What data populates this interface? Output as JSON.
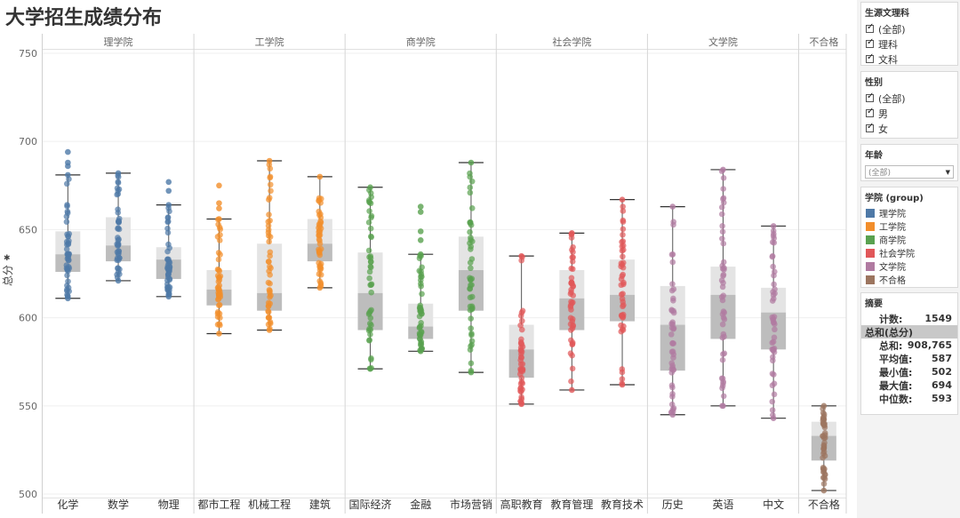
{
  "title": "大学招生成绩分布",
  "chart_data": {
    "type": "box-scatter",
    "ylabel": "总分",
    "ylim": [
      498,
      752
    ],
    "yticks": [
      500,
      550,
      600,
      650,
      700,
      750
    ],
    "grid": true,
    "colleges": [
      {
        "name": "理学院",
        "color": "#4e79a7",
        "majors": [
          {
            "name": "化学",
            "min": 611,
            "q1": 626,
            "median": 636,
            "q3": 649,
            "max": 681,
            "extra_points": [
              686,
              688,
              694
            ]
          },
          {
            "name": "数学",
            "min": 621,
            "q1": 632,
            "median": 641,
            "q3": 657,
            "max": 682,
            "extra_points": []
          },
          {
            "name": "物理",
            "min": 612,
            "q1": 622,
            "median": 633,
            "q3": 640,
            "max": 664,
            "extra_points": [
              672,
              677
            ]
          }
        ]
      },
      {
        "name": "工学院",
        "color": "#f28e2b",
        "majors": [
          {
            "name": "都市工程",
            "min": 591,
            "q1": 607,
            "median": 616,
            "q3": 627,
            "max": 656,
            "extra_points": [
              662,
              665,
              675
            ]
          },
          {
            "name": "机械工程",
            "min": 593,
            "q1": 604,
            "median": 614,
            "q3": 642,
            "max": 689,
            "extra_points": []
          },
          {
            "name": "建筑",
            "min": 617,
            "q1": 632,
            "median": 642,
            "q3": 656,
            "max": 680,
            "extra_points": []
          }
        ]
      },
      {
        "name": "商学院",
        "color": "#59a14f",
        "majors": [
          {
            "name": "国际经济",
            "min": 571,
            "q1": 593,
            "median": 614,
            "q3": 637,
            "max": 674,
            "extra_points": []
          },
          {
            "name": "金融",
            "min": 581,
            "q1": 588,
            "median": 595,
            "q3": 608,
            "max": 636,
            "extra_points": [
              644,
              649,
              660,
              663
            ]
          },
          {
            "name": "市场营销",
            "min": 569,
            "q1": 604,
            "median": 627,
            "q3": 646,
            "max": 688,
            "extra_points": []
          }
        ]
      },
      {
        "name": "社会学院",
        "color": "#e15759",
        "majors": [
          {
            "name": "高职教育",
            "min": 551,
            "q1": 566,
            "median": 582,
            "q3": 596,
            "max": 635,
            "extra_points": []
          },
          {
            "name": "教育管理",
            "min": 559,
            "q1": 593,
            "median": 611,
            "q3": 627,
            "max": 648,
            "extra_points": []
          },
          {
            "name": "教育技术",
            "min": 562,
            "q1": 598,
            "median": 613,
            "q3": 633,
            "max": 667,
            "extra_points": []
          }
        ]
      },
      {
        "name": "文学院",
        "color": "#b07aa1",
        "majors": [
          {
            "name": "历史",
            "min": 545,
            "q1": 570,
            "median": 596,
            "q3": 618,
            "max": 663,
            "extra_points": []
          },
          {
            "name": "英语",
            "min": 550,
            "q1": 588,
            "median": 613,
            "q3": 629,
            "max": 684,
            "extra_points": []
          },
          {
            "name": "中文",
            "min": 543,
            "q1": 582,
            "median": 603,
            "q3": 617,
            "max": 652,
            "extra_points": []
          }
        ]
      },
      {
        "name": "不合格",
        "color": "#9c755f",
        "majors": [
          {
            "name": "不合格",
            "min": 502,
            "q1": 519,
            "median": 533,
            "q3": 541,
            "max": 550,
            "extra_points": []
          }
        ]
      }
    ]
  },
  "filters": {
    "subject": {
      "title": "生源文理科",
      "items": [
        "(全部)",
        "理科",
        "文科"
      ]
    },
    "gender": {
      "title": "性别",
      "items": [
        "(全部)",
        "男",
        "女"
      ]
    },
    "grade": {
      "title": "年龄",
      "value": "(全部)"
    }
  },
  "legend": {
    "title": "学院 (group)",
    "items": [
      {
        "label": "理学院",
        "color": "#4e79a7"
      },
      {
        "label": "工学院",
        "color": "#f28e2b"
      },
      {
        "label": "商学院",
        "color": "#59a14f"
      },
      {
        "label": "社会学院",
        "color": "#e15759"
      },
      {
        "label": "文学院",
        "color": "#b07aa1"
      },
      {
        "label": "不合格",
        "color": "#9c755f"
      }
    ]
  },
  "summary": {
    "title": "摘要",
    "count": {
      "label": "计数:",
      "value": "1549"
    },
    "group": "总和(总分)",
    "rows": [
      {
        "label": "总和:",
        "value": "908,765"
      },
      {
        "label": "平均值:",
        "value": "587"
      },
      {
        "label": "最小值:",
        "value": "502"
      },
      {
        "label": "最大值:",
        "value": "694"
      },
      {
        "label": "中位数:",
        "value": "593"
      }
    ]
  }
}
